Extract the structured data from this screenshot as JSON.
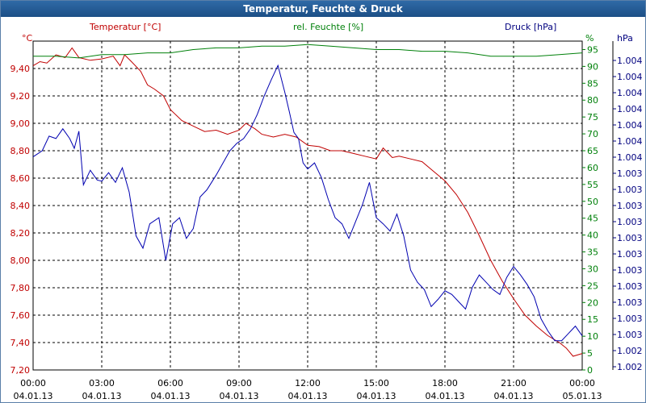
{
  "window": {
    "title": "Temperatur, Feuchte & Druck"
  },
  "chart_data": {
    "type": "line",
    "title": "Temperatur, Feuchte & Druck",
    "legend": {
      "temperature": "Temperatur [°C]",
      "humidity": "rel. Feuchte [%]",
      "pressure": "Druck [hPa]"
    },
    "axes": {
      "left": {
        "unit": "°C",
        "ylim": [
          7.2,
          9.6
        ],
        "ticks": [
          "7,20",
          "7,40",
          "7,60",
          "7,80",
          "8,00",
          "8,20",
          "8,40",
          "8,60",
          "8,80",
          "9,00",
          "9,20",
          "9,40"
        ],
        "tick_values": [
          7.2,
          7.4,
          7.6,
          7.8,
          8.0,
          8.2,
          8.4,
          8.6,
          8.8,
          9.0,
          9.2,
          9.4
        ]
      },
      "middle": {
        "unit": "%",
        "ylim": [
          0,
          97.5
        ],
        "ticks": [
          "0",
          "5",
          "10",
          "15",
          "20",
          "25",
          "30",
          "35",
          "40",
          "45",
          "50",
          "55",
          "60",
          "65",
          "70",
          "75",
          "80",
          "85",
          "90",
          "95"
        ]
      },
      "right": {
        "unit": "hPa",
        "ticks": [
          "1.002",
          "1.002",
          "1.003",
          "1.003",
          "1.003",
          "1.003",
          "1.003",
          "1.003",
          "1.003",
          "1.003",
          "1.003",
          "1.003",
          "1.003",
          "1.004",
          "1.004",
          "1.004",
          "1.004",
          "1.004",
          "1.004",
          "1.004"
        ]
      },
      "x": {
        "ticks": [
          {
            "time": "00:00",
            "date": "04.01.13"
          },
          {
            "time": "03:00",
            "date": "04.01.13"
          },
          {
            "time": "06:00",
            "date": "04.01.13"
          },
          {
            "time": "09:00",
            "date": "04.01.13"
          },
          {
            "time": "12:00",
            "date": "04.01.13"
          },
          {
            "time": "15:00",
            "date": "04.01.13"
          },
          {
            "time": "18:00",
            "date": "04.01.13"
          },
          {
            "time": "21:00",
            "date": "04.01.13"
          },
          {
            "time": "00:00",
            "date": "05.01.13"
          }
        ],
        "range_hours": [
          0,
          24
        ]
      }
    },
    "grid": true,
    "series": [
      {
        "name": "Temperatur [°C]",
        "axis": "left",
        "color": "#c00000",
        "x": [
          0,
          0.3,
          0.6,
          1,
          1.4,
          1.7,
          2,
          2.5,
          3,
          3.5,
          3.8,
          4,
          4.3,
          4.7,
          5,
          5.3,
          5.7,
          6,
          6.5,
          7,
          7.5,
          8,
          8.5,
          9,
          9.3,
          9.7,
          10,
          10.5,
          11,
          11.5,
          12,
          12.5,
          13,
          13.5,
          14,
          14.5,
          15,
          15.3,
          15.7,
          16,
          16.5,
          17,
          17.5,
          18,
          18.5,
          19,
          19.5,
          20,
          20.5,
          21,
          21.5,
          22,
          22.5,
          23,
          23.3,
          23.6,
          24
        ],
        "values": [
          9.42,
          9.45,
          9.44,
          9.5,
          9.48,
          9.55,
          9.48,
          9.46,
          9.47,
          9.49,
          9.42,
          9.5,
          9.45,
          9.38,
          9.28,
          9.25,
          9.2,
          9.1,
          9.02,
          8.98,
          8.94,
          8.95,
          8.92,
          8.95,
          9.0,
          8.96,
          8.92,
          8.9,
          8.92,
          8.9,
          8.84,
          8.83,
          8.8,
          8.8,
          8.78,
          8.76,
          8.74,
          8.82,
          8.75,
          8.76,
          8.74,
          8.72,
          8.65,
          8.58,
          8.48,
          8.35,
          8.18,
          8.0,
          7.85,
          7.72,
          7.6,
          7.52,
          7.45,
          7.4,
          7.36,
          7.3,
          7.32
        ]
      },
      {
        "name": "rel. Feuchte [%]",
        "axis": "middle",
        "color": "#00800a",
        "x": [
          0,
          1,
          2,
          3,
          4,
          5,
          6,
          7,
          8,
          9,
          10,
          11,
          12,
          13,
          14,
          15,
          16,
          17,
          18,
          19,
          20,
          21,
          22,
          23,
          24
        ],
        "values": [
          93,
          93,
          92.5,
          93.5,
          93.5,
          94,
          94,
          95,
          95.5,
          95.5,
          96,
          96,
          96.5,
          96,
          95.5,
          95,
          95,
          94.5,
          94.5,
          94,
          93,
          93,
          93,
          93.5,
          94
        ]
      },
      {
        "name": "Druck [hPa]",
        "axis": "right",
        "color": "#0000b0",
        "x": [
          0,
          0.4,
          0.7,
          1,
          1.3,
          1.6,
          1.8,
          2,
          2.2,
          2.5,
          2.8,
          3,
          3.3,
          3.6,
          3.9,
          4.2,
          4.5,
          4.8,
          5.1,
          5.5,
          5.8,
          6.1,
          6.4,
          6.7,
          7,
          7.3,
          7.6,
          8,
          8.3,
          8.6,
          8.9,
          9.2,
          9.5,
          9.8,
          10.1,
          10.4,
          10.7,
          11,
          11.2,
          11.4,
          11.6,
          11.8,
          12,
          12.3,
          12.6,
          12.9,
          13.2,
          13.5,
          13.8,
          14.1,
          14.4,
          14.7,
          15,
          15.3,
          15.6,
          15.9,
          16.2,
          16.5,
          16.8,
          17.1,
          17.4,
          17.7,
          18,
          18.3,
          18.6,
          18.9,
          19.2,
          19.5,
          19.8,
          20.1,
          20.4,
          20.7,
          21,
          21.3,
          21.6,
          21.9,
          22.2,
          22.5,
          22.8,
          23.1,
          23.4,
          23.7,
          24
        ],
        "values": [
          1.00395,
          1.004,
          1.00412,
          1.0041,
          1.00418,
          1.0041,
          1.00402,
          1.00416,
          1.00372,
          1.00384,
          1.00376,
          1.00375,
          1.00382,
          1.00374,
          1.00386,
          1.00366,
          1.0033,
          1.0032,
          1.0034,
          1.00345,
          1.0031,
          1.0034,
          1.00345,
          1.00328,
          1.00336,
          1.00362,
          1.00368,
          1.0038,
          1.0039,
          1.004,
          1.00406,
          1.0041,
          1.00418,
          1.0043,
          1.00445,
          1.00458,
          1.0047,
          1.00448,
          1.00432,
          1.00415,
          1.0041,
          1.0039,
          1.00385,
          1.0039,
          1.00378,
          1.0036,
          1.00345,
          1.0034,
          1.00328,
          1.00342,
          1.00356,
          1.00374,
          1.00345,
          1.0034,
          1.00334,
          1.00348,
          1.0033,
          1.00302,
          1.00292,
          1.00286,
          1.00272,
          1.00278,
          1.00285,
          1.00282,
          1.00276,
          1.0027,
          1.00288,
          1.00298,
          1.00292,
          1.00286,
          1.00282,
          1.00296,
          1.00305,
          1.00298,
          1.0029,
          1.0028,
          1.00262,
          1.00252,
          1.00244,
          1.00244,
          1.0025,
          1.00256,
          1.00248
        ]
      }
    ],
    "pressure_plot_range": [
      1.0022,
      1.0049
    ]
  }
}
